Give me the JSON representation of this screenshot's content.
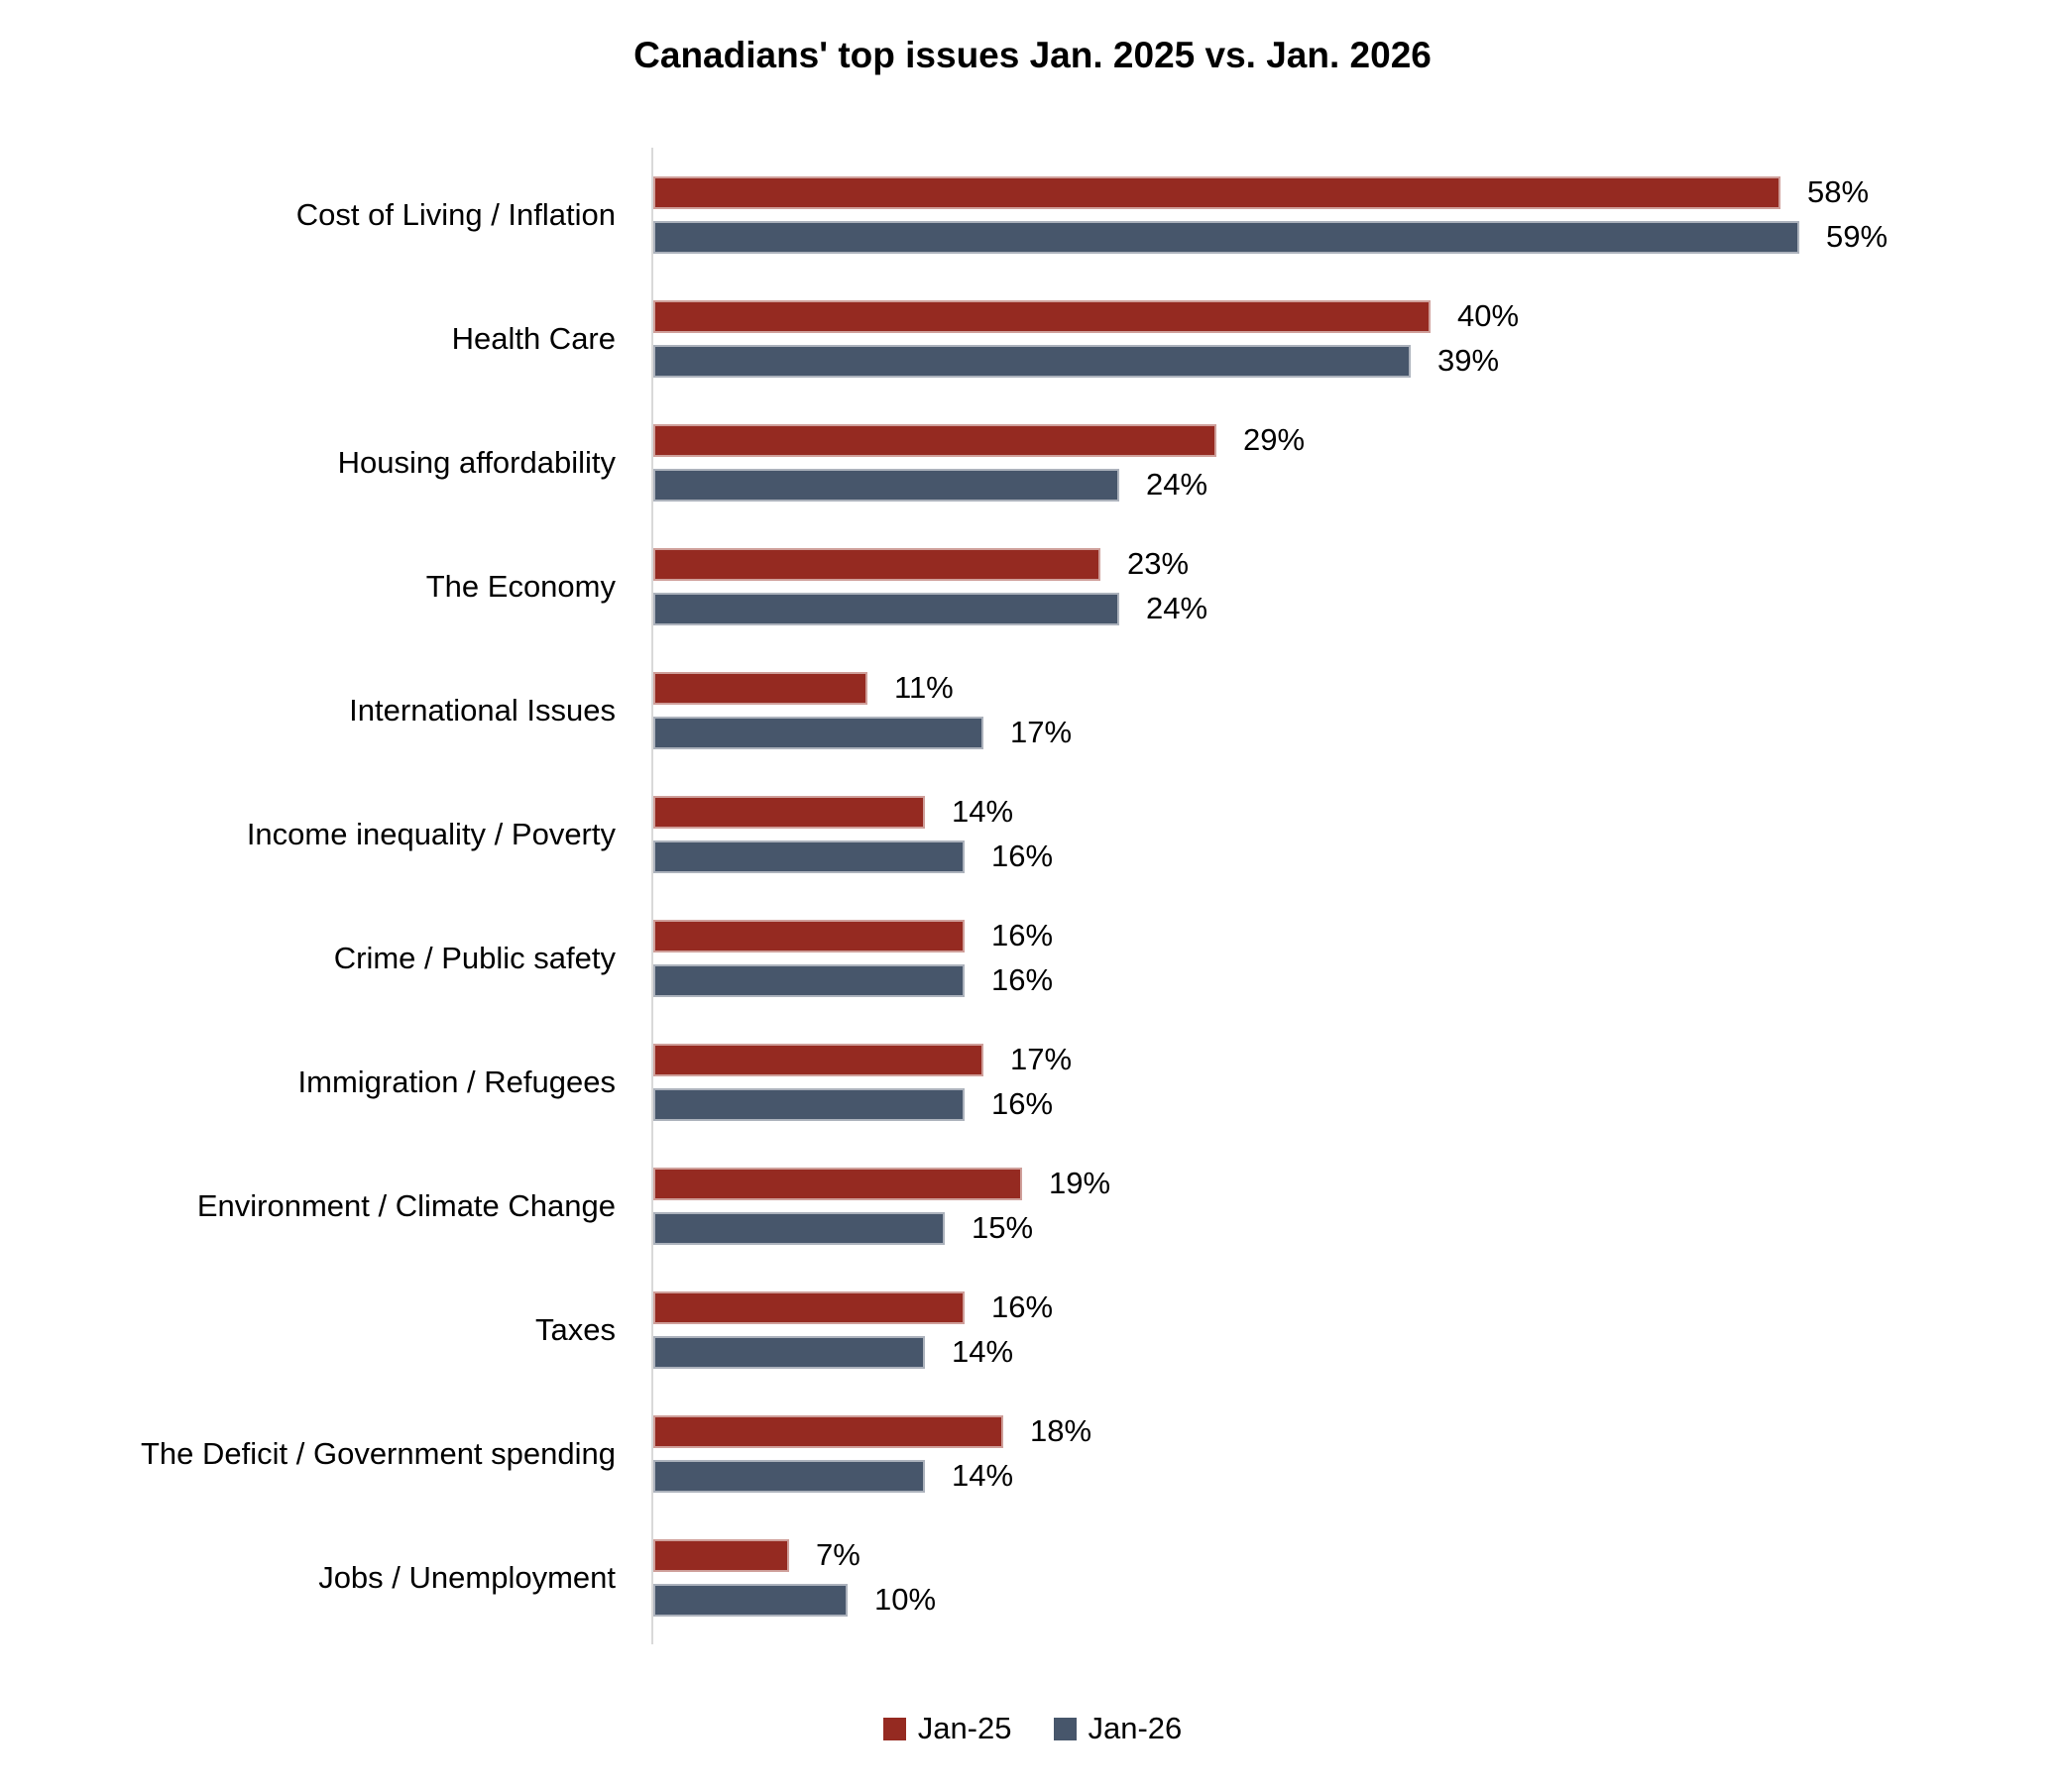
{
  "chart_data": {
    "type": "bar",
    "orientation": "horizontal",
    "title": "Canadians' top issues Jan. 2025 vs. Jan. 2026",
    "categories": [
      "Cost of Living / Inflation",
      "Health Care",
      "Housing affordability",
      "The Economy",
      "International Issues",
      "Income inequality / Poverty",
      "Crime / Public safety",
      "Immigration / Refugees",
      "Environment / Climate Change",
      "Taxes",
      "The Deficit / Government spending",
      "Jobs / Unemployment"
    ],
    "series": [
      {
        "name": "Jan-25",
        "color": "#952A21",
        "values": [
          58,
          40,
          29,
          23,
          11,
          14,
          16,
          17,
          19,
          16,
          18,
          7
        ]
      },
      {
        "name": "Jan-26",
        "color": "#47566B",
        "values": [
          59,
          39,
          24,
          24,
          17,
          16,
          16,
          16,
          15,
          14,
          14,
          10
        ]
      }
    ],
    "value_suffix": "%",
    "data_labels": true,
    "xlim": [
      0,
      70
    ],
    "grid": false,
    "legend_position": "bottom",
    "axis_line_color": "#d9d9d9"
  }
}
